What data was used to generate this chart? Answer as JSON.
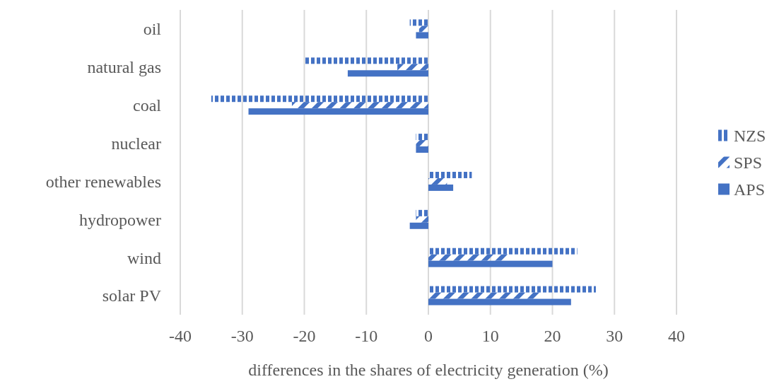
{
  "chart_data": {
    "type": "bar",
    "orientation": "horizontal",
    "xlabel": "differences in the shares of electricity generation (%)",
    "categories": [
      "oil",
      "natural gas",
      "coal",
      "nuclear",
      "other renewables",
      "hydropower",
      "wind",
      "solar PV"
    ],
    "series": [
      {
        "name": "NZS",
        "color": "#4472c4",
        "values": [
          -3,
          -20,
          -35,
          -2,
          7,
          -2,
          24,
          27
        ]
      },
      {
        "name": "SPS",
        "color": "#4472c4",
        "values": [
          -1.5,
          -5,
          -22,
          -2,
          3,
          -2,
          13,
          18
        ]
      },
      {
        "name": "APS",
        "color": "#4472c4",
        "values": [
          -2,
          -13,
          -29,
          -2,
          4,
          -3,
          20,
          23
        ]
      }
    ],
    "xlim": [
      -40,
      40
    ],
    "xticks": [
      -40,
      -30,
      -20,
      -10,
      0,
      10,
      20,
      30,
      40
    ],
    "grid": "x",
    "legend": "right"
  }
}
